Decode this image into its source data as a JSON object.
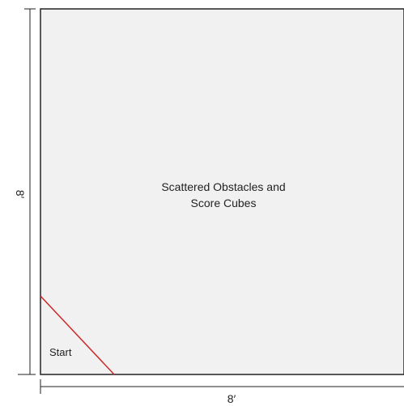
{
  "field": {
    "center_text_line1": "Scattered Obstacles and",
    "center_text_line2": "Score Cubes",
    "start_label": "Start"
  },
  "dimensions": {
    "width_label": "8′",
    "height_label": "8′"
  },
  "colors": {
    "field_fill": "#f1f1f1",
    "border": "#222222",
    "start_line": "#cc2a2a"
  }
}
